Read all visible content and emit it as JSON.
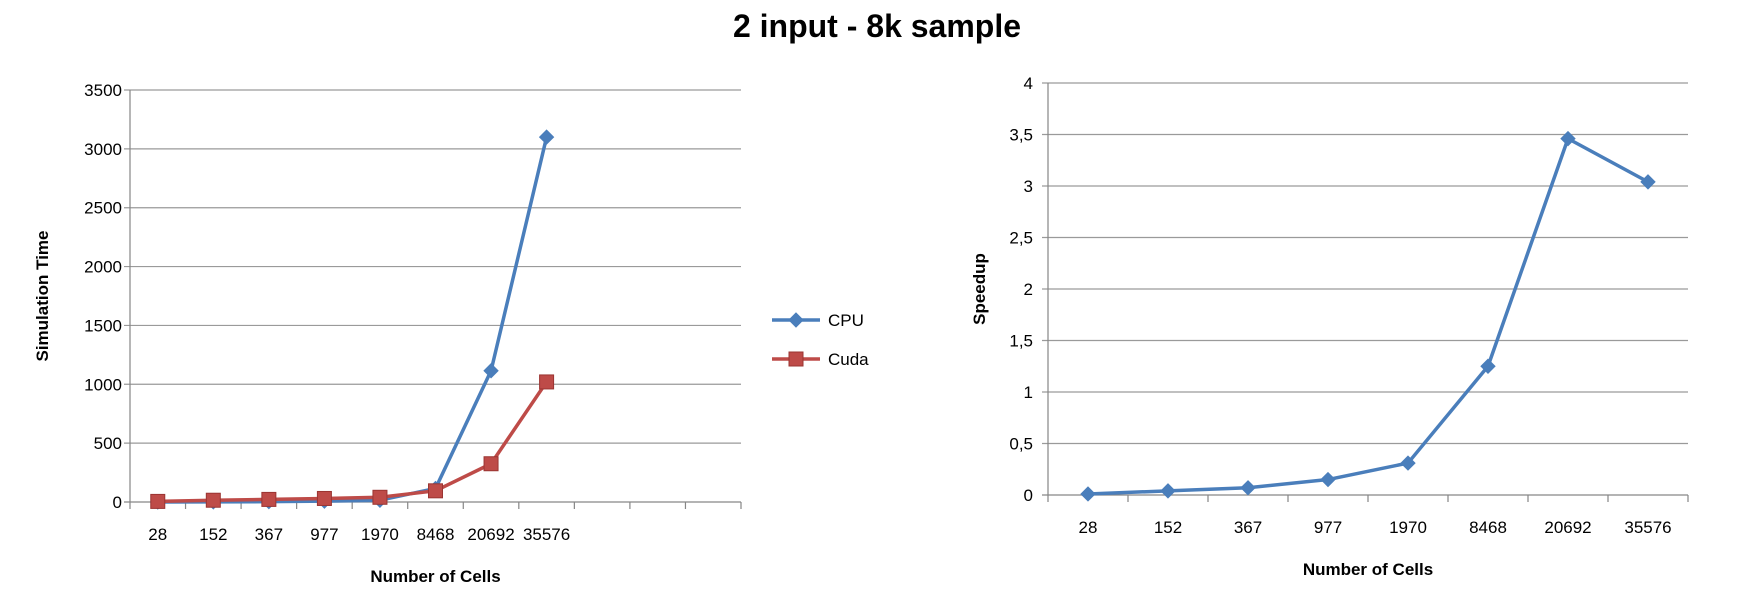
{
  "title": "2 input - 8k sample",
  "chart_data": [
    {
      "type": "line",
      "categories": [
        "28",
        "152",
        "367",
        "977",
        "1970",
        "8468",
        "20692",
        "35576"
      ],
      "slots": 11,
      "series": [
        {
          "name": "CPU",
          "color": "#4a7ebb",
          "marker": "diamond",
          "values": [
            0,
            1,
            3,
            7,
            15,
            115,
            1115,
            3100
          ]
        },
        {
          "name": "Cuda",
          "color": "#be4b48",
          "marker": "square",
          "values": [
            5,
            15,
            22,
            30,
            40,
            95,
            325,
            1020
          ]
        }
      ],
      "xlabel": "Number of Cells",
      "ylabel": "Simulation Time",
      "ylim": [
        0,
        3500
      ],
      "yticks": [
        "0",
        "500",
        "1000",
        "1500",
        "2000",
        "2500",
        "3000",
        "3500"
      ],
      "grid": true,
      "legend": "right"
    },
    {
      "type": "line",
      "categories": [
        "28",
        "152",
        "367",
        "977",
        "1970",
        "8468",
        "20692",
        "35576"
      ],
      "slots": 8,
      "series": [
        {
          "name": "",
          "color": "#4a7ebb",
          "marker": "diamond",
          "values": [
            0.01,
            0.04,
            0.07,
            0.15,
            0.31,
            1.25,
            3.46,
            3.04
          ]
        }
      ],
      "xlabel": "Number of Cells",
      "ylabel": "Speedup",
      "ylim": [
        0,
        4
      ],
      "yticks": [
        "0",
        "0,5",
        "1",
        "1,5",
        "2",
        "2,5",
        "3",
        "3,5",
        "4"
      ],
      "grid": true,
      "legend": "none"
    }
  ]
}
